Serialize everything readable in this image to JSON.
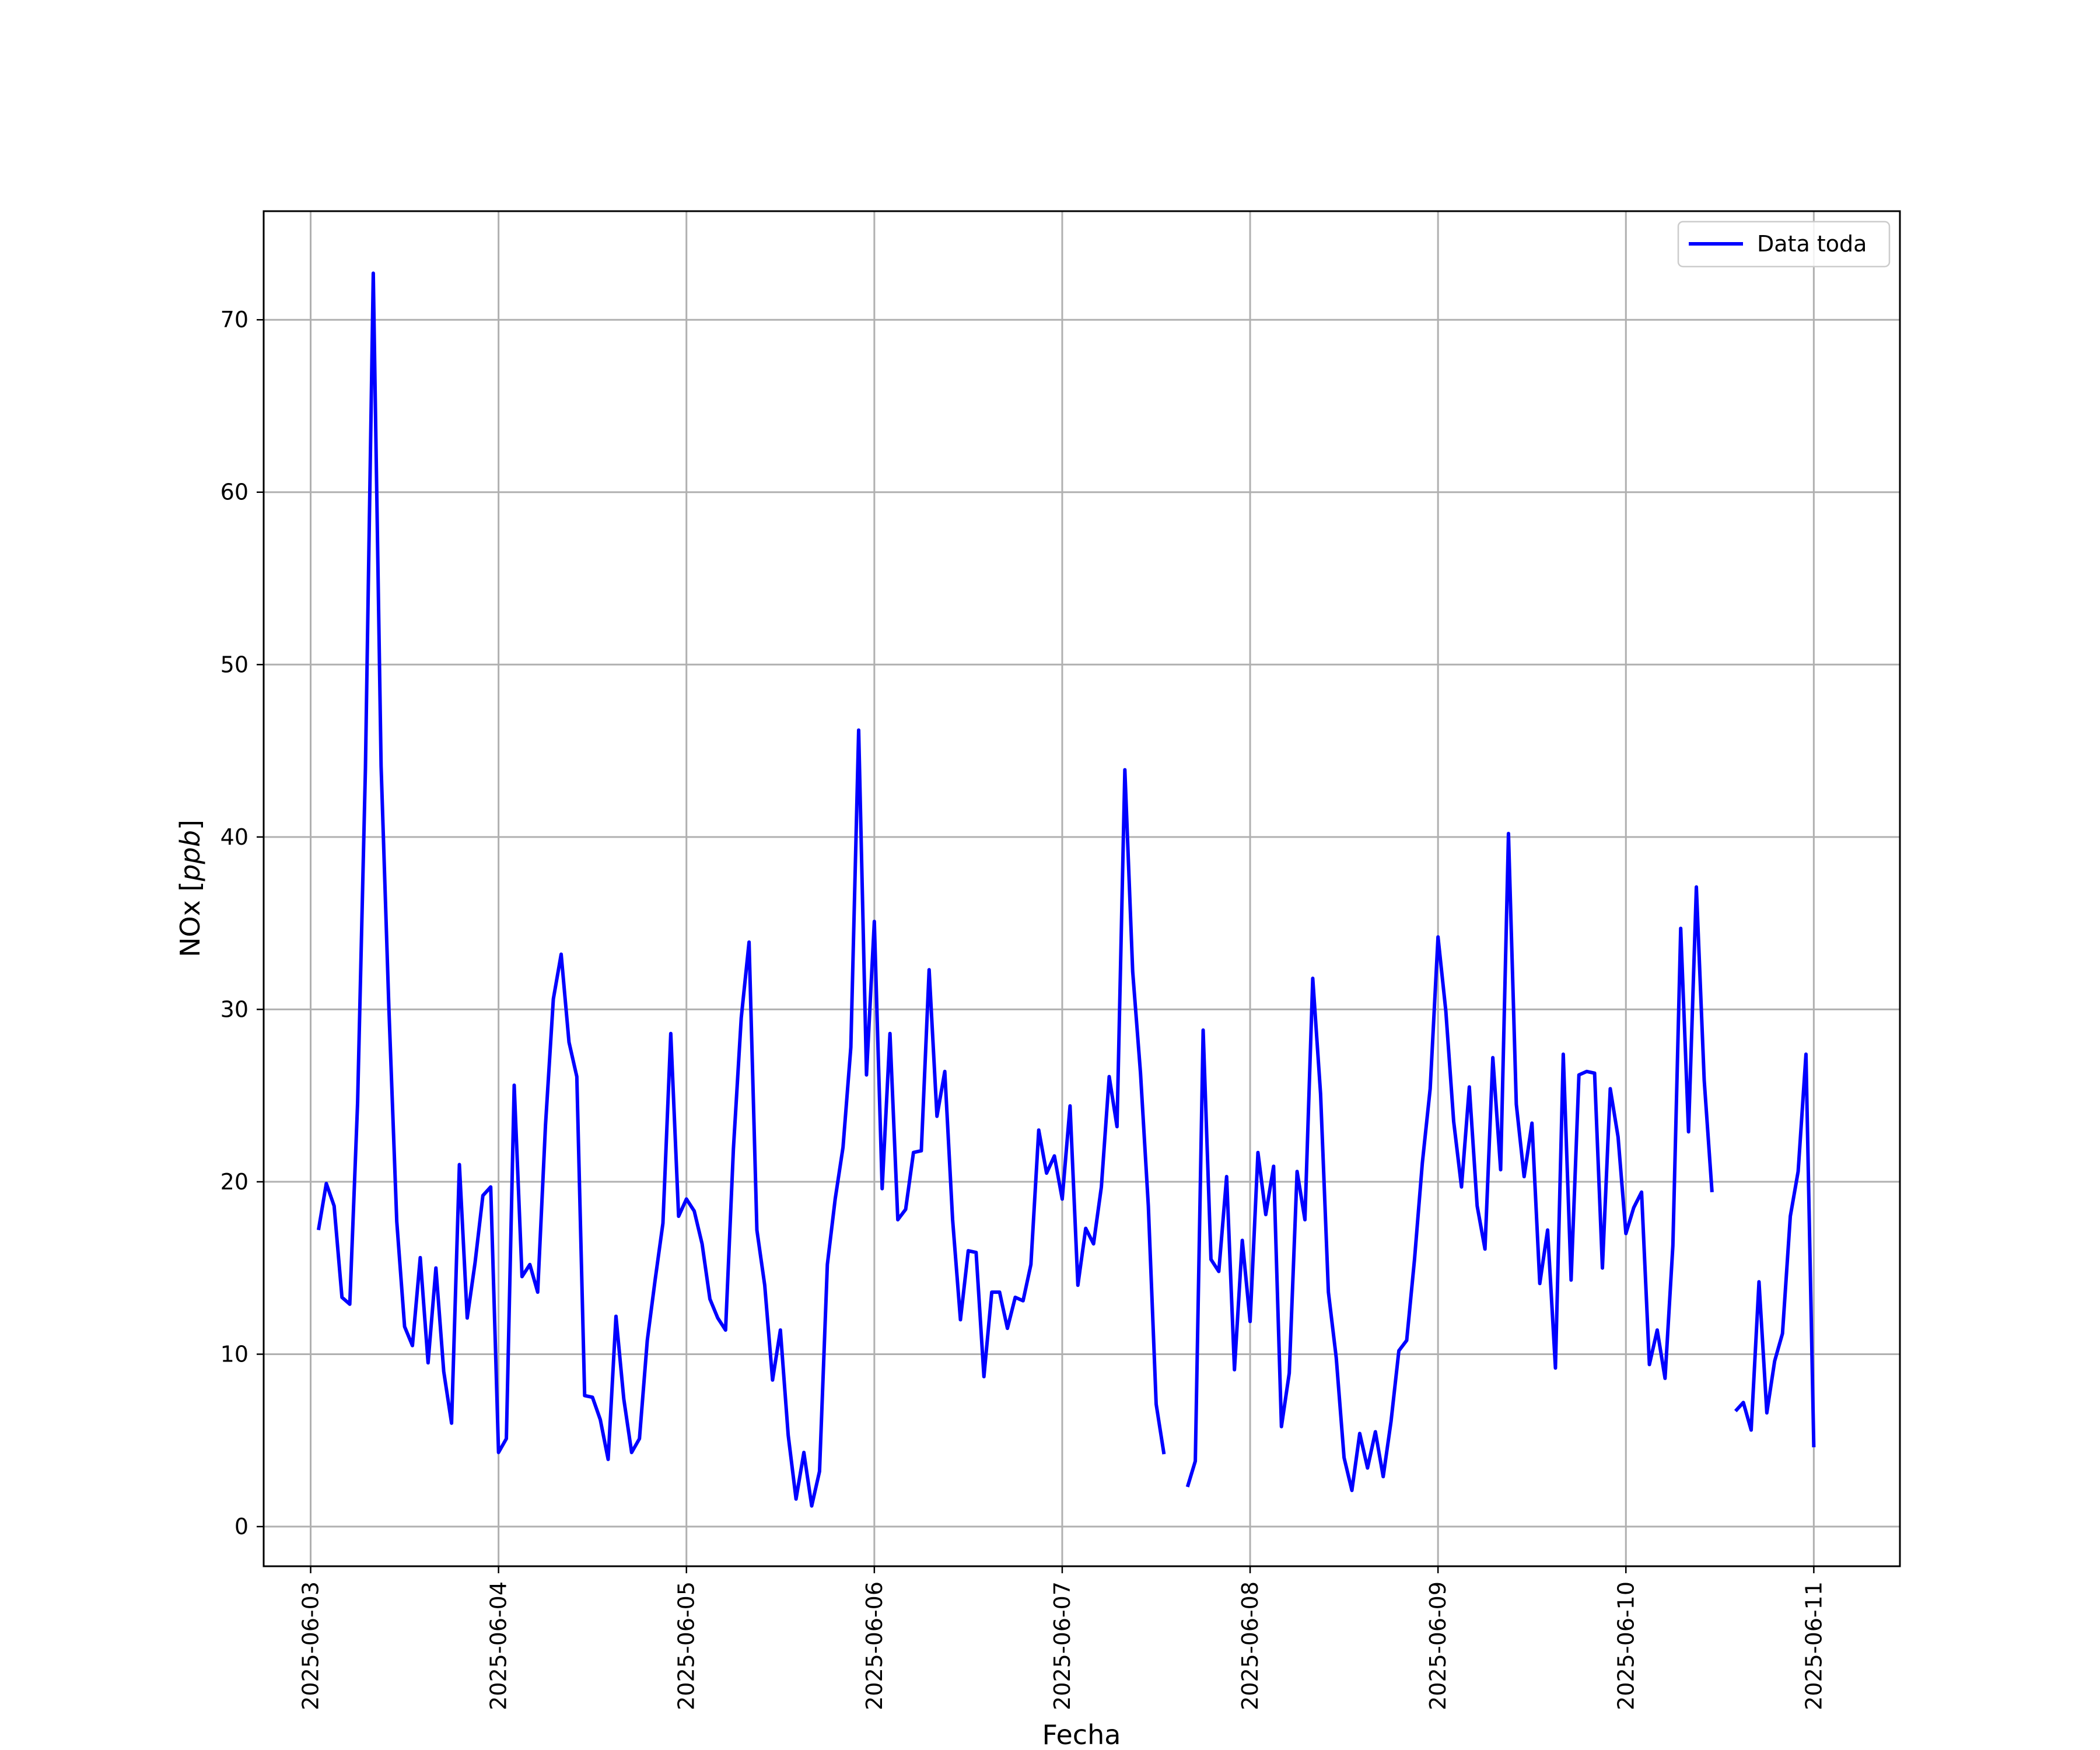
{
  "chart_data": {
    "type": "line",
    "title": "",
    "xlabel": "Fecha",
    "ylabel": "NOx [ppb]",
    "ylabel_parts": {
      "prefix": "NOx [",
      "unit": "ppb",
      "suffix": "]"
    },
    "ylim": [
      -2.3,
      76.3
    ],
    "xlim": [
      "2025-06-02 18:00",
      "2025-06-11 11:00"
    ],
    "grid": true,
    "legend": {
      "placement": "top-right",
      "entries": [
        "Data toda"
      ]
    },
    "y_ticks": [
      0,
      10,
      20,
      30,
      40,
      50,
      60,
      70
    ],
    "x_ticks": [
      "2025-06-03",
      "2025-06-04",
      "2025-06-05",
      "2025-06-06",
      "2025-06-07",
      "2025-06-08",
      "2025-06-09",
      "2025-06-10",
      "2025-06-11"
    ],
    "x_tick_rotation": 90,
    "series": [
      {
        "name": "Data toda",
        "color": "#0000ff",
        "start": "2025-06-03 01:00",
        "interval_hours": 1,
        "values": [
          17.2,
          19.9,
          18.6,
          13.3,
          12.9,
          24.6,
          44.0,
          72.7,
          44.1,
          30.0,
          17.7,
          11.6,
          10.5,
          15.6,
          9.5,
          15.0,
          9.0,
          6.0,
          21.0,
          12.1,
          15.3,
          19.2,
          19.7,
          4.3,
          5.1,
          25.6,
          14.5,
          15.2,
          13.6,
          23.3,
          30.6,
          33.2,
          28.1,
          26.1,
          7.6,
          7.5,
          6.2,
          3.9,
          12.2,
          7.4,
          4.3,
          5.1,
          10.8,
          14.3,
          17.6,
          28.6,
          18.0,
          19.0,
          18.3,
          16.4,
          13.2,
          12.1,
          11.4,
          21.9,
          29.5,
          33.9,
          17.2,
          14.0,
          8.5,
          11.4,
          5.3,
          1.6,
          4.3,
          1.2,
          3.2,
          15.2,
          19.0,
          22.0,
          27.8,
          46.2,
          26.2,
          35.1,
          19.6,
          28.6,
          17.8,
          18.4,
          21.7,
          21.8,
          32.3,
          23.8,
          26.4,
          17.8,
          12.0,
          16.0,
          15.9,
          8.7,
          13.6,
          13.6,
          11.5,
          13.3,
          13.1,
          15.2,
          23.0,
          20.5,
          21.5,
          19.0,
          24.4,
          14.0,
          17.3,
          16.4,
          19.7,
          26.1,
          23.2,
          43.9,
          32.2,
          26.3,
          18.6,
          7.1,
          4.2,
          null,
          null,
          2.3,
          3.8,
          28.8,
          15.5,
          14.8,
          20.3,
          9.1,
          16.6,
          11.9,
          21.7,
          18.1,
          20.9,
          5.8,
          8.9,
          20.6,
          17.8,
          31.8,
          25.1,
          13.6,
          9.8,
          4.0,
          2.1,
          5.4,
          3.4,
          5.5,
          2.9,
          6.1,
          10.2,
          10.8,
          15.5,
          21.1,
          25.4,
          34.2,
          29.9,
          23.5,
          19.7,
          25.5,
          18.6,
          16.1,
          27.2,
          20.7,
          40.2,
          24.5,
          20.3,
          23.4,
          14.1,
          17.2,
          9.2,
          27.4,
          14.3,
          26.2,
          26.4,
          26.3,
          15.0,
          25.4,
          22.6,
          17.0,
          18.5,
          19.4,
          9.4,
          11.4,
          8.6,
          16.3,
          34.7,
          22.9,
          37.1,
          25.9,
          19.4,
          null,
          null,
          6.7,
          7.2,
          5.6,
          14.2,
          6.6,
          9.6,
          11.2,
          18.0,
          20.6,
          27.4,
          4.6
        ]
      }
    ]
  }
}
